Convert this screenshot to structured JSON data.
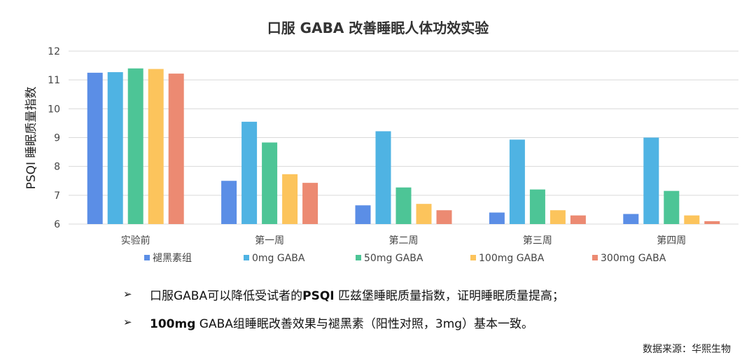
{
  "chart_data": {
    "type": "bar",
    "title": "口服 GABA 改善睡眠人体功效实验",
    "ylabel": "PSQI 睡眠质量指数",
    "xlabel": "",
    "ylim": [
      6,
      12
    ],
    "yticks": [
      6,
      7,
      8,
      9,
      10,
      11,
      12
    ],
    "grid": true,
    "legend_position": "bottom",
    "categories": [
      "实验前",
      "第一周",
      "第二周",
      "第三周",
      "第四周"
    ],
    "series": [
      {
        "name": "褪黑素组",
        "color": "#5b8ee6",
        "values": [
          11.25,
          7.5,
          6.65,
          6.4,
          6.35
        ]
      },
      {
        "name": "0mg GABA",
        "color": "#4fb3e3",
        "values": [
          11.27,
          9.55,
          9.22,
          8.93,
          9.0
        ]
      },
      {
        "name": "50mg GABA",
        "color": "#4dc596",
        "values": [
          11.4,
          8.83,
          7.27,
          7.2,
          7.15
        ]
      },
      {
        "name": "100mg GABA",
        "color": "#fcc45c",
        "values": [
          11.38,
          7.73,
          6.7,
          6.48,
          6.3
        ]
      },
      {
        "name": "300mg GABA",
        "color": "#ec8a72",
        "values": [
          11.22,
          7.43,
          6.48,
          6.3,
          6.1
        ]
      }
    ]
  },
  "bullets": [
    {
      "arrow": "➢",
      "pre": "口服GABA可以降低受试者的",
      "bold": "PSQI",
      "post": " 匹兹堡睡眠质量指数，证明睡眠质量提高；"
    },
    {
      "arrow": "➢",
      "pre": "",
      "bold": "100mg",
      "post": " GABA组睡眠改善效果与褪黑素（阳性对照，3mg）基本一致。"
    }
  ],
  "source": "数据来源：华熙生物"
}
